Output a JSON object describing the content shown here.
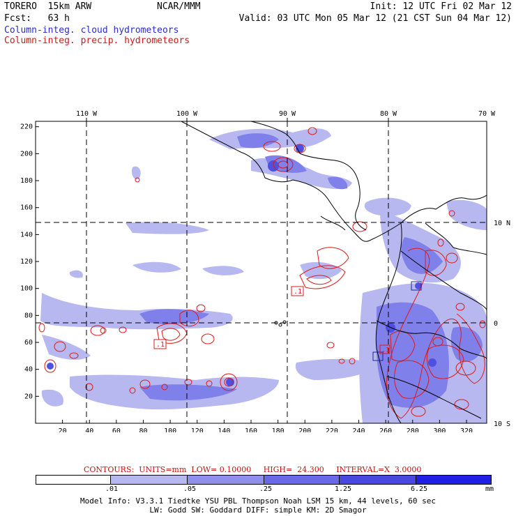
{
  "header": {
    "model": "TORERO  15km ARW",
    "org": "NCAR/MMM",
    "init": "Init: 12 UTC Fri 02 Mar 12",
    "fcst": "Fcst:   63 h",
    "valid": "Valid: 03 UTC Mon 05 Mar 12 (21 CST Sun 04 Mar 12)",
    "legend_cloud": "Column-integ. cloud hydrometeors",
    "legend_precip": "Column-integ. precip. hydrometeors"
  },
  "map": {
    "lon_labels": [
      "110 W",
      "100 W",
      "90 W",
      "80 W",
      "70 W"
    ],
    "lat_labels": [
      "10 N",
      "0",
      "10 S"
    ],
    "y_ticks": [
      "220",
      "200",
      "180",
      "160",
      "140",
      "120",
      "100",
      "80",
      "60",
      "40",
      "20"
    ],
    "x_ticks": [
      "20",
      "40",
      "60",
      "80",
      "100",
      "120",
      "140",
      "160",
      "180",
      "200",
      "220",
      "240",
      "260",
      "280",
      "300",
      "320"
    ],
    "contour_labels": [
      ".1",
      ".1",
      ".1"
    ]
  },
  "contour_info": {
    "text": "CONTOURS:  UNITS=mm  LOW= 0.10000     HIGH=  24.300     INTERVAL=X  3.0000"
  },
  "colorbar": {
    "labels": [
      ".01",
      ".05",
      ".25",
      "1.25",
      "6.25"
    ],
    "unit": "mm",
    "colors": [
      "#ffffff",
      "#d8f4fa",
      "#b8b8f0",
      "#9090ec",
      "#6a6ae8",
      "#4848e0",
      "#2020e4"
    ]
  },
  "footer": {
    "line1": "Model Info: V3.3.1    Tiedtke YSU PBL  Thompson    Noah LSM  15 km,   44 levels,    60 sec",
    "line2": "LW: Godd SW: Goddard DIFF: simple KM: 2D Smagor"
  }
}
